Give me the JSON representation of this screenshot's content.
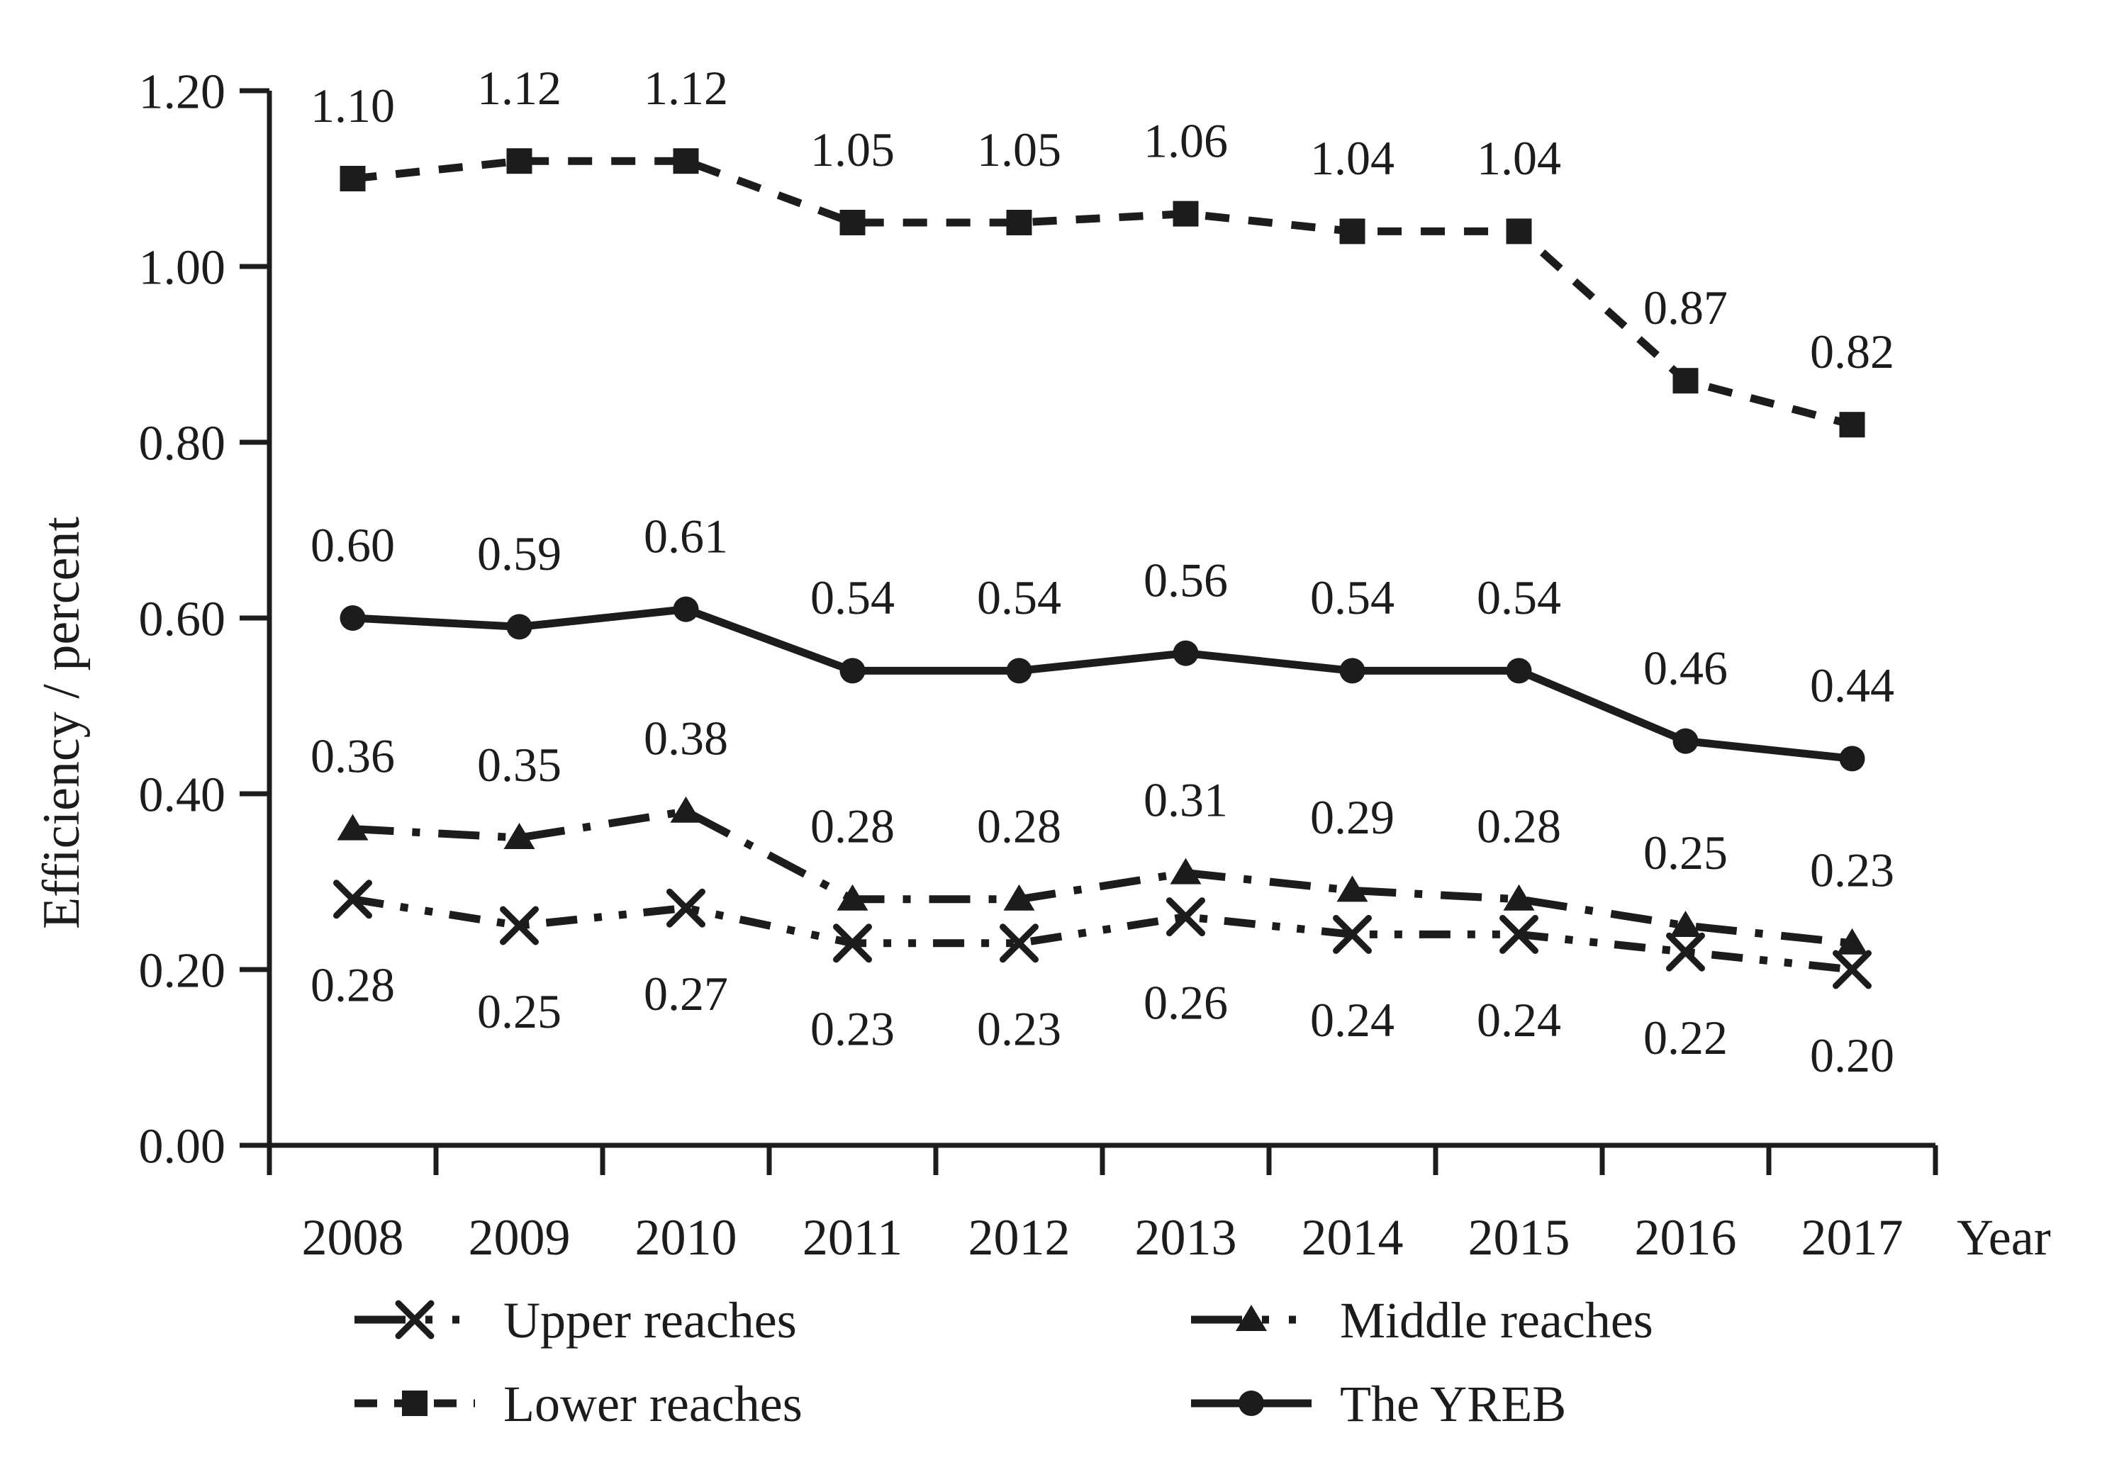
{
  "page": {
    "background": "#ffffff"
  },
  "chart_data": {
    "type": "line",
    "title": "",
    "ylabel": "Efficiency / percent",
    "xlabel": "Year",
    "categories": [
      "2008",
      "2009",
      "2010",
      "2011",
      "2012",
      "2013",
      "2014",
      "2015",
      "2016",
      "2017"
    ],
    "ylim": [
      0.0,
      1.2
    ],
    "ytick_step": 0.2,
    "ytick_labels": [
      "0.00",
      "0.20",
      "0.40",
      "0.60",
      "0.80",
      "1.00",
      "1.20"
    ],
    "grid": false,
    "data_labels": true,
    "data_label_format": "0.00",
    "ink_color": "#1c1c1c",
    "background_color": "#ffffff",
    "legend_position": "bottom-two-columns",
    "legend_order": [
      "Upper reaches",
      "Middle reaches",
      "Lower reaches",
      "The YREB"
    ],
    "series": [
      {
        "name": "Upper reaches",
        "marker": "cross",
        "line_style": "dash-dot-dot",
        "label_side": "below",
        "values": [
          0.28,
          0.25,
          0.27,
          0.23,
          0.23,
          0.26,
          0.24,
          0.24,
          0.22,
          0.2
        ]
      },
      {
        "name": "Middle reaches",
        "marker": "triangle",
        "line_style": "dash-dot",
        "label_side": "above",
        "values": [
          0.36,
          0.35,
          0.38,
          0.28,
          0.28,
          0.31,
          0.29,
          0.28,
          0.25,
          0.23
        ]
      },
      {
        "name": "Lower reaches",
        "marker": "square",
        "line_style": "dashed",
        "label_side": "above",
        "values": [
          1.1,
          1.12,
          1.12,
          1.05,
          1.05,
          1.06,
          1.04,
          1.04,
          0.87,
          0.82
        ]
      },
      {
        "name": "The YREB",
        "marker": "circle",
        "line_style": "solid",
        "label_side": "above",
        "values": [
          0.6,
          0.59,
          0.61,
          0.54,
          0.54,
          0.56,
          0.54,
          0.54,
          0.46,
          0.44
        ]
      }
    ]
  }
}
